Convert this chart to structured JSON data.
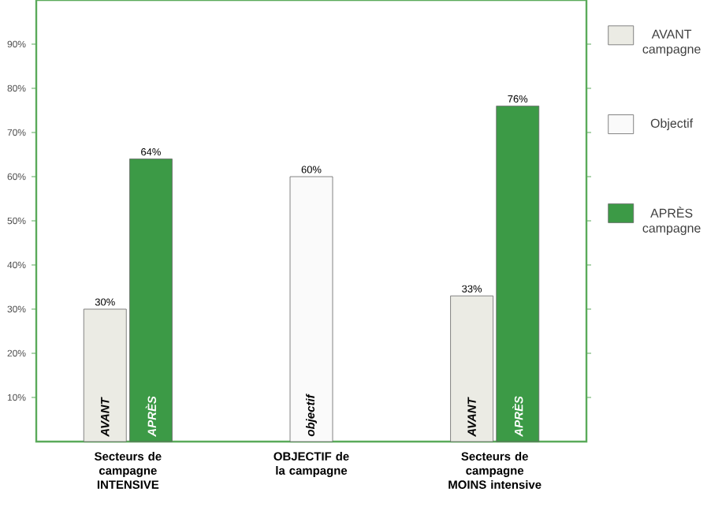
{
  "chart_data": {
    "type": "bar",
    "categories": [
      "Secteurs de campagne INTENSIVE",
      "OBJECTIF de la campagne",
      "Secteurs de campagne MOINS intensive"
    ],
    "series": [
      {
        "name": "AVANT campagne",
        "color": "#ebebe4",
        "values": [
          30,
          null,
          33
        ],
        "value_labels": [
          "30%",
          null,
          "33%"
        ]
      },
      {
        "name": "Objectif",
        "color": "#fafafa",
        "values": [
          null,
          60,
          null
        ],
        "value_labels": [
          null,
          "60%",
          null
        ]
      },
      {
        "name": "APRÈS campagne",
        "color": "#3c9a46",
        "values": [
          64,
          null,
          76
        ],
        "value_labels": [
          "64%",
          null,
          "76%"
        ]
      }
    ],
    "annotations": [
      {
        "text": "AVANT",
        "x": "Secteurs de campagne INTENSIVE",
        "y": 0
      },
      {
        "text": "APRÈS",
        "x": "Secteurs de campagne INTENSIVE",
        "y": 0
      },
      {
        "text": "objectif",
        "x": "OBJECTIF de la campagne",
        "y": 0
      },
      {
        "text": "AVANT",
        "x": "Secteurs de campagne MOINS intensive",
        "y": 0
      },
      {
        "text": "APRÈS",
        "x": "Secteurs de campagne MOINS intensive",
        "y": 0
      }
    ],
    "ylim": [
      0,
      100
    ],
    "yticks": [
      {
        "value": 10,
        "label": "10%"
      },
      {
        "value": 20,
        "label": "20%"
      },
      {
        "value": 30,
        "label": "30%"
      },
      {
        "value": 40,
        "label": "40%"
      },
      {
        "value": 50,
        "label": "50%"
      },
      {
        "value": 60,
        "label": "60%"
      },
      {
        "value": 70,
        "label": "70%"
      },
      {
        "value": 80,
        "label": "80%"
      },
      {
        "value": 90,
        "label": "90%"
      }
    ],
    "grid": false,
    "legend": "right"
  }
}
